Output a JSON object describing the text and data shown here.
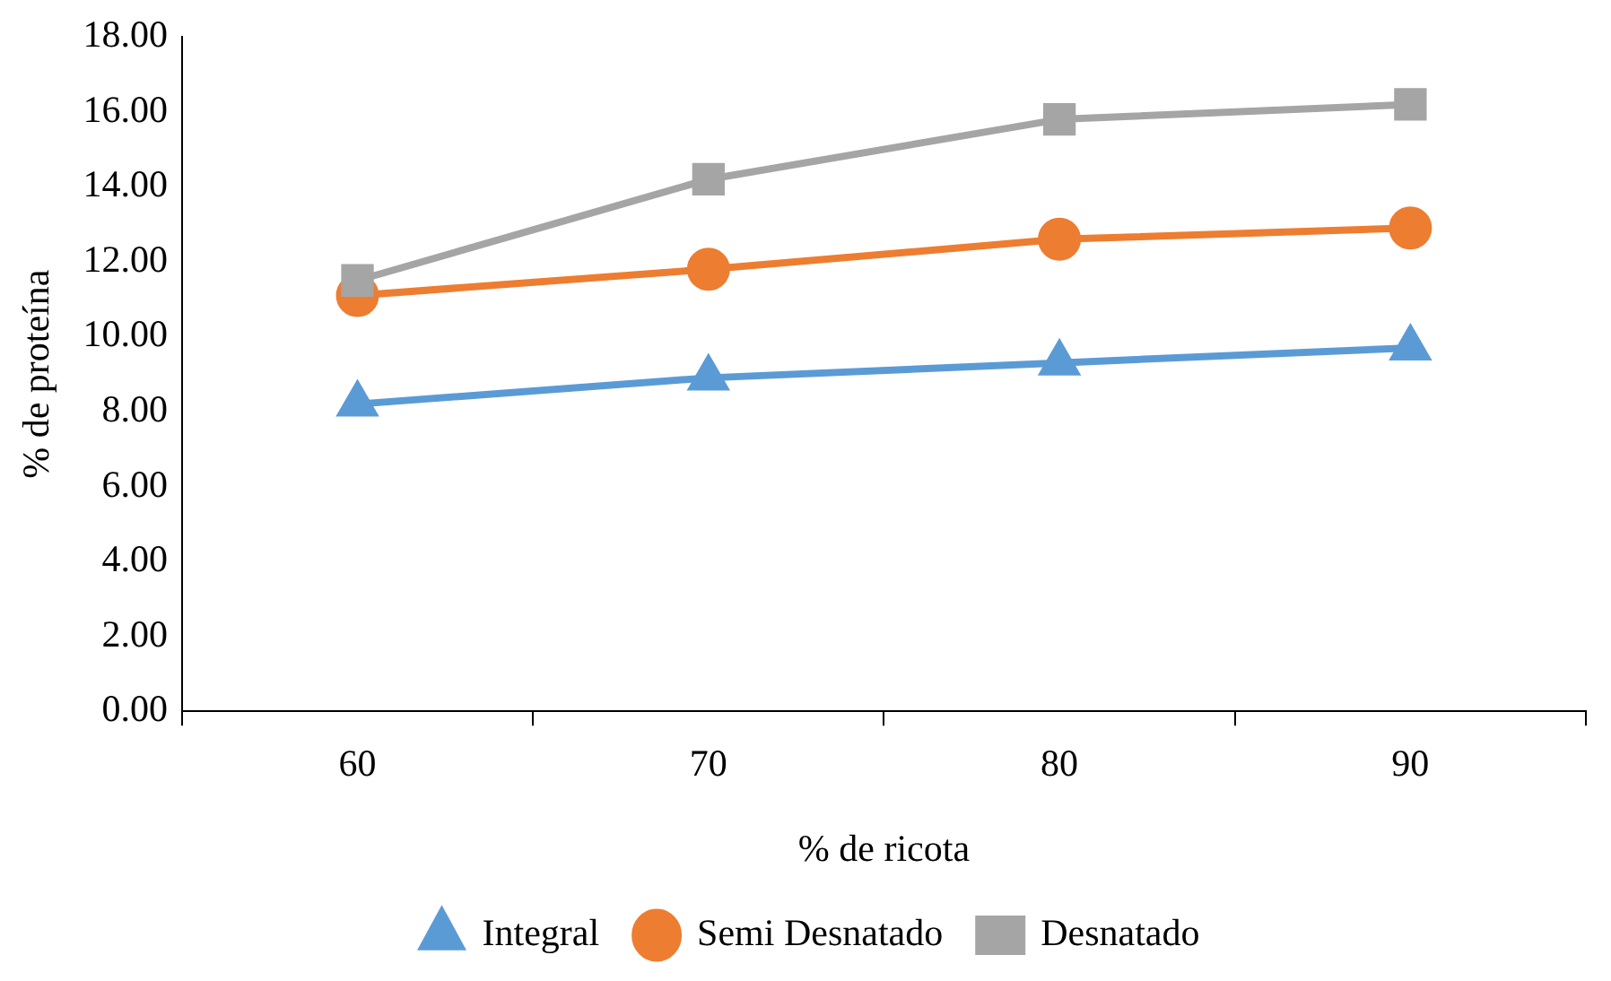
{
  "chart_data": {
    "type": "line",
    "xlabel": "% de ricota",
    "ylabel": "% de proteína",
    "categories": [
      "60",
      "70",
      "80",
      "90"
    ],
    "series": [
      {
        "name": "Integral",
        "color": "#5b9bd5",
        "marker": "triangle",
        "values": [
          8.2,
          8.9,
          9.3,
          9.7
        ]
      },
      {
        "name": "Semi Desnatado",
        "color": "#ed7d31",
        "marker": "circle",
        "values": [
          11.1,
          11.8,
          12.6,
          12.9
        ]
      },
      {
        "name": "Desnatado",
        "color": "#a5a5a5",
        "marker": "square",
        "values": [
          11.5,
          14.2,
          15.8,
          16.2
        ]
      }
    ],
    "ylim": [
      0,
      18
    ],
    "yticks": [
      {
        "value": 0,
        "label": "0.00"
      },
      {
        "value": 2,
        "label": "2.00"
      },
      {
        "value": 4,
        "label": "4.00"
      },
      {
        "value": 6,
        "label": "6.00"
      },
      {
        "value": 8,
        "label": "8.00"
      },
      {
        "value": 10,
        "label": "10.00"
      },
      {
        "value": 12,
        "label": "12.00"
      },
      {
        "value": 14,
        "label": "14.00"
      },
      {
        "value": 16,
        "label": "16.00"
      },
      {
        "value": 18,
        "label": "18.00"
      }
    ],
    "grid": false,
    "legend": "bottom",
    "line_style": "solid"
  }
}
